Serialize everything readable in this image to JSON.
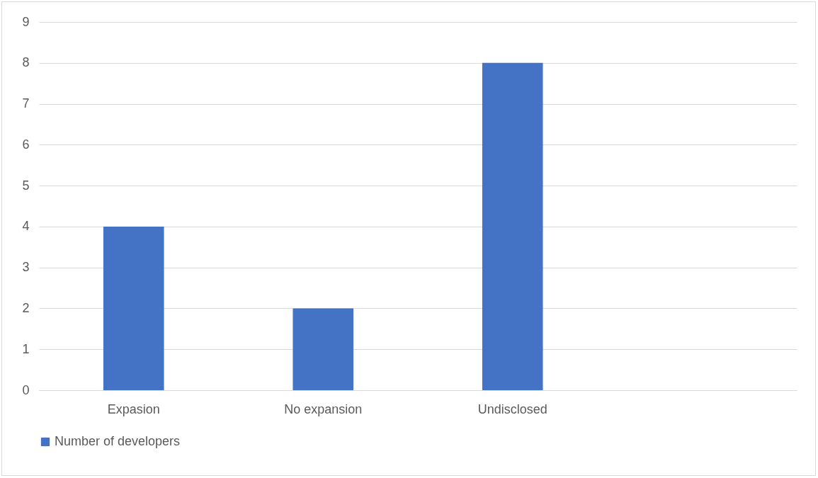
{
  "chart_data": {
    "type": "bar",
    "categories": [
      "Expasion",
      "No expansion",
      "Undisclosed",
      null
    ],
    "series": [
      {
        "name": "Number of developers",
        "color": "#4472c4",
        "values": [
          4,
          2,
          8,
          null
        ]
      }
    ],
    "ylim": [
      0,
      9
    ],
    "yticks": [
      0,
      1,
      2,
      3,
      4,
      5,
      6,
      7,
      8,
      9
    ],
    "grid": "y",
    "legend": "bottom"
  }
}
